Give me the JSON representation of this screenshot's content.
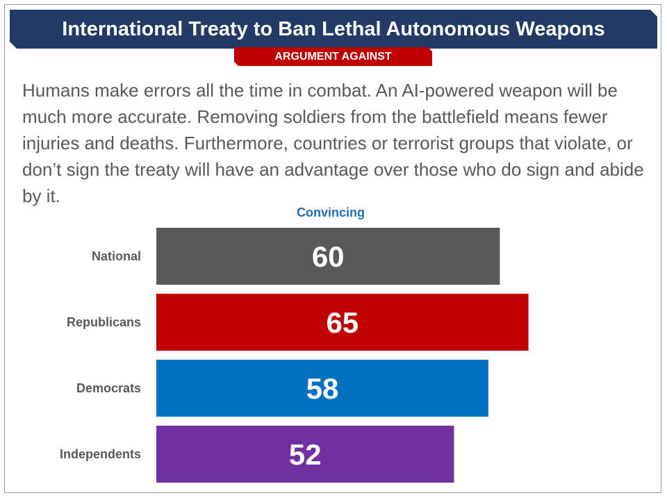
{
  "header": {
    "title": "International Treaty to Ban Lethal Autonomous Weapons",
    "tag": "ARGUMENT AGAINST"
  },
  "body_text": "Humans make errors all the time in combat. An AI-powered weapon will be much more accurate. Removing soldiers from the battlefield means fewer injuries and deaths. Furthermore, countries or terrorist groups that violate, or don’t sign the treaty will have an advantage over those who do sign and abide by it.",
  "colors": {
    "banner": "#243a66",
    "tag": "#c00000",
    "header_text": "#1f6fb5"
  },
  "chart_data": {
    "type": "bar",
    "orientation": "horizontal",
    "column_header": "Convincing",
    "categories": [
      "National",
      "Republicans",
      "Democrats",
      "Independents"
    ],
    "values": [
      60,
      65,
      58,
      52
    ],
    "colors": [
      "#595959",
      "#c00000",
      "#0070c0",
      "#7030a0"
    ],
    "xlim": [
      0,
      100
    ],
    "grid": false,
    "legend": "none"
  }
}
